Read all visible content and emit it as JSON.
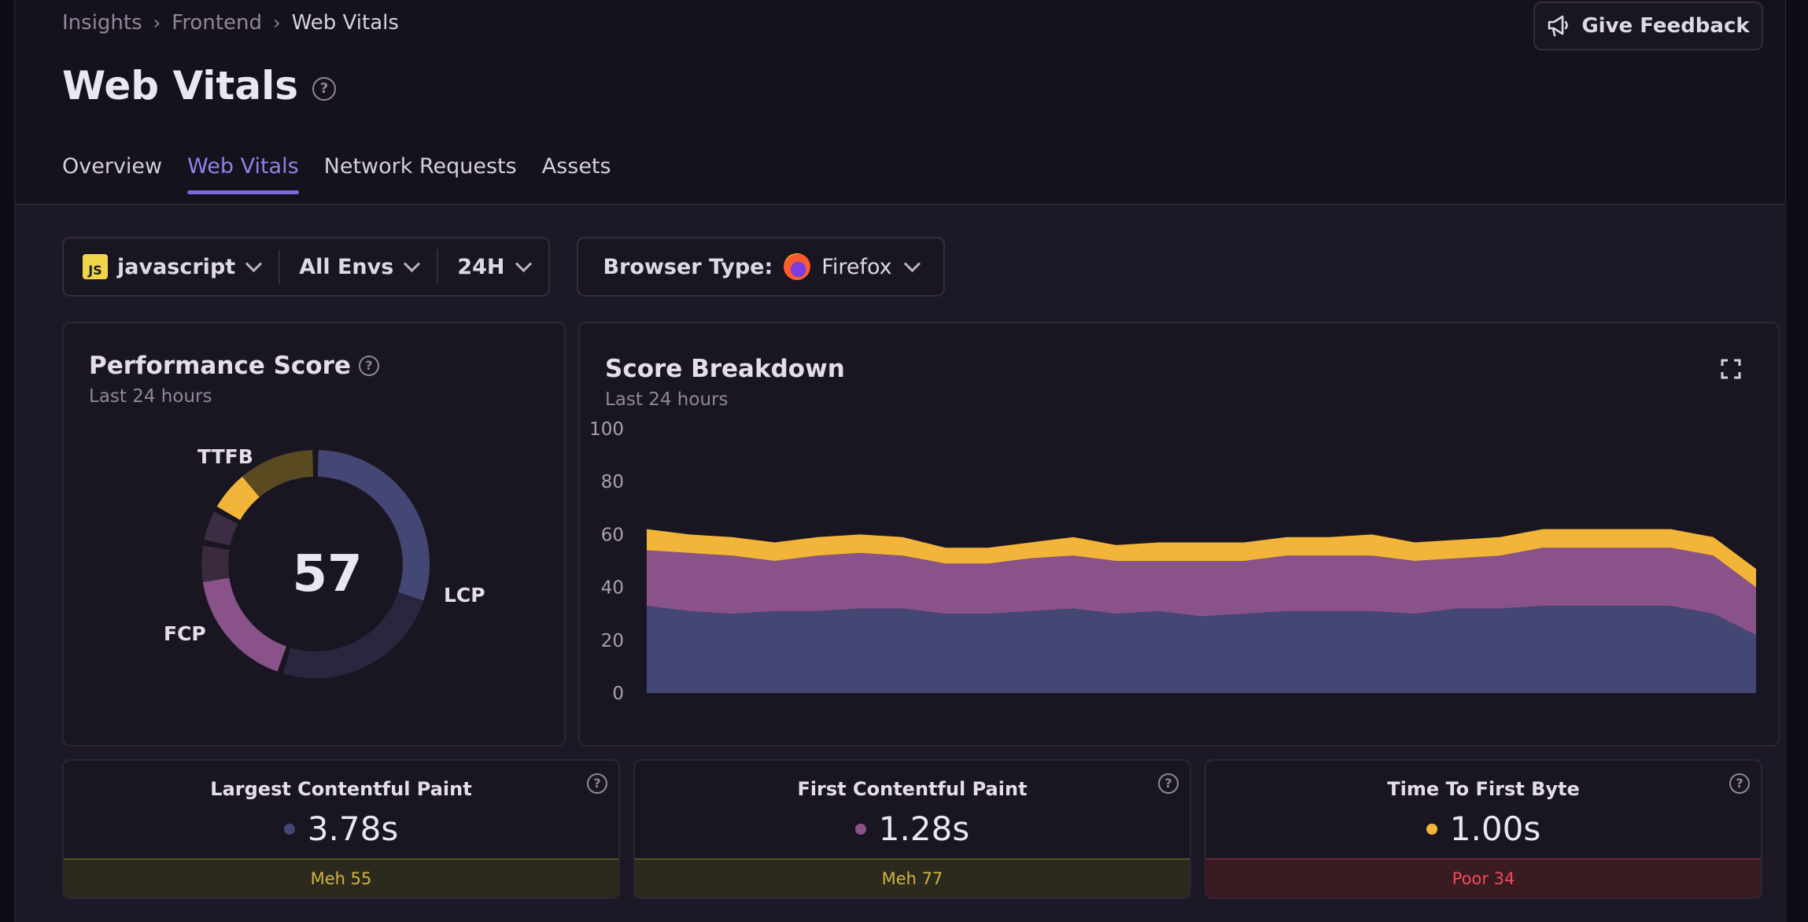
{
  "breadcrumb": [
    "Insights",
    "Frontend",
    "Web Vitals"
  ],
  "page_title": "Web Vitals",
  "feedback_label": "Give Feedback",
  "tabs": [
    {
      "label": "Overview",
      "active": false
    },
    {
      "label": "Web Vitals",
      "active": true
    },
    {
      "label": "Network Requests",
      "active": false
    },
    {
      "label": "Assets",
      "active": false
    }
  ],
  "filters": {
    "project_badge": "JS",
    "project": "javascript",
    "environment": "All Envs",
    "period": "24H",
    "browser_label": "Browser Type:",
    "browser_value": "Firefox"
  },
  "performance_score": {
    "title": "Performance Score",
    "subtitle": "Last 24 hours",
    "score": "57",
    "segments": [
      {
        "label": "LCP",
        "weight": 0.55,
        "filled": 0.55,
        "color": "#444674"
      },
      {
        "label": "FCP",
        "weight": 0.23,
        "filled": 0.77,
        "color": "#895289"
      },
      {
        "label": "",
        "weight": 0.05,
        "filled": 1.0,
        "color": "#3a2d44"
      },
      {
        "label": "TTFB",
        "weight": 0.17,
        "filled": 0.34,
        "color": "#f2b53a"
      }
    ],
    "colors": {
      "empty_lcp": "#2a2640",
      "empty_fcp": "#3a2a3e",
      "empty_ttfb": "#5a4a22"
    }
  },
  "score_breakdown": {
    "title": "Score Breakdown",
    "subtitle": "Last 24 hours"
  },
  "chart_data": {
    "type": "area",
    "stacked": true,
    "ylim": [
      0,
      100
    ],
    "yticks": [
      "0",
      "20",
      "40",
      "60",
      "80",
      "100"
    ],
    "series": [
      {
        "color": "#444674",
        "values": [
          33,
          31,
          30,
          31,
          31,
          32,
          32,
          30,
          30,
          31,
          32,
          30,
          31,
          29,
          30,
          31,
          31,
          31,
          30,
          32,
          32,
          33,
          33,
          33,
          33,
          30,
          22
        ]
      },
      {
        "color": "#895289",
        "values": [
          21,
          22,
          22,
          19,
          21,
          21,
          20,
          19,
          19,
          20,
          20,
          20,
          19,
          21,
          20,
          21,
          21,
          21,
          20,
          19,
          20,
          22,
          22,
          22,
          22,
          22,
          18
        ]
      },
      {
        "color": "#f2b53a",
        "values": [
          8,
          7,
          7,
          7,
          7,
          7,
          7,
          6,
          6,
          6,
          7,
          6,
          7,
          7,
          7,
          7,
          7,
          8,
          7,
          7,
          7,
          7,
          7,
          7,
          7,
          7,
          7
        ]
      }
    ]
  },
  "metrics": [
    {
      "name": "Largest Contentful Paint",
      "value": "3.78s",
      "dot_color": "#444674",
      "status": "Meh 55",
      "status_class": "meh"
    },
    {
      "name": "First Contentful Paint",
      "value": "1.28s",
      "dot_color": "#895289",
      "status": "Meh 77",
      "status_class": "meh"
    },
    {
      "name": "Time To First Byte",
      "value": "1.00s",
      "dot_color": "#f2b53a",
      "status": "Poor 34",
      "status_class": "poor"
    }
  ]
}
